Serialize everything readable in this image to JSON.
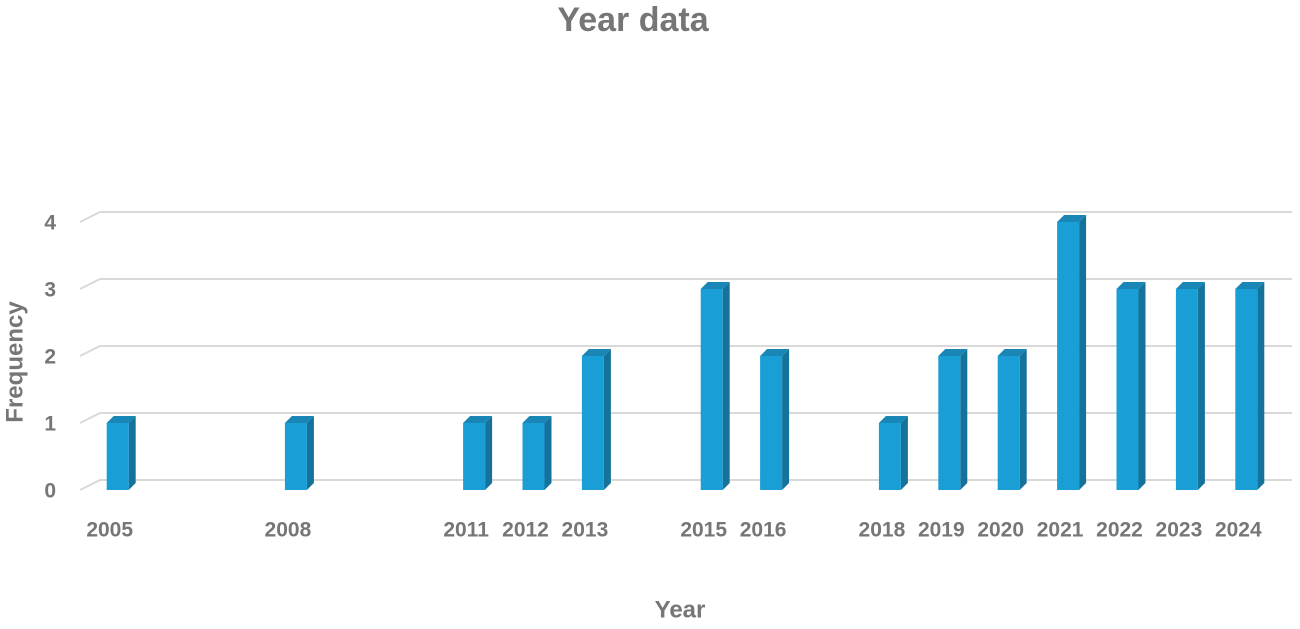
{
  "chart_data": {
    "type": "bar",
    "title": "Year data",
    "x_label": "Year",
    "y_label": "Frequency",
    "categories": [
      "2005",
      null,
      null,
      "2008",
      null,
      null,
      "2011",
      "2012",
      "2013",
      null,
      "2015",
      "2016",
      null,
      "2018",
      "2019",
      "2020",
      "2021",
      "2022",
      "2023",
      "2024"
    ],
    "values": [
      1,
      null,
      null,
      1,
      null,
      null,
      1,
      1,
      2,
      null,
      3,
      2,
      null,
      1,
      2,
      2,
      4,
      3,
      3,
      3
    ],
    "color": "#1a9ed6",
    "ylim": [
      0,
      4
    ],
    "yticks": [
      0,
      1,
      2,
      3,
      4
    ],
    "grid": true
  }
}
